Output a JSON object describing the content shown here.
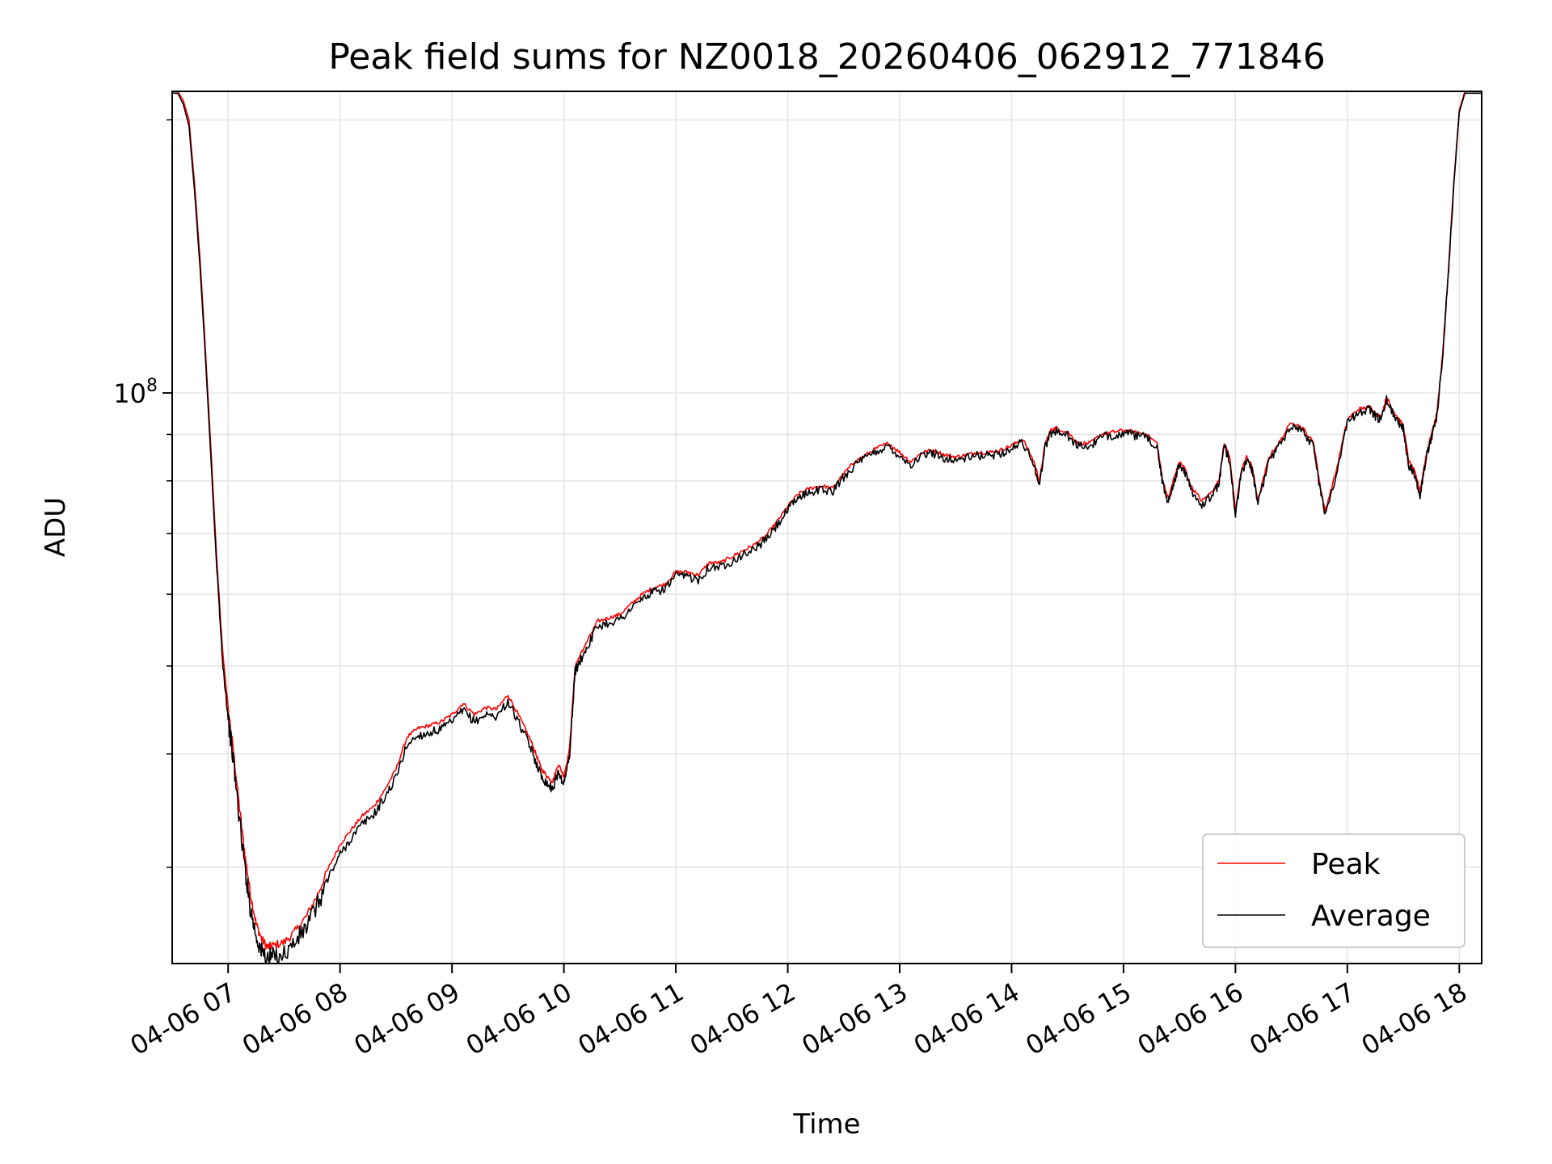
{
  "chart_data": {
    "type": "line",
    "title": "Peak field sums for NZ0018_20260406_062912_771846",
    "xlabel": "Time",
    "ylabel": "ADU",
    "x_unit": "hours since 04-06 00:00",
    "xlim": [
      6.5,
      18.2
    ],
    "ylim": [
      23500000,
      215000000
    ],
    "yscale": "log",
    "y_major_tick": {
      "value": 100000000,
      "label": "10",
      "exp": "8"
    },
    "y_minor_ticks": [
      30000000,
      40000000,
      50000000,
      60000000,
      70000000,
      80000000,
      90000000,
      200000000
    ],
    "x_ticks": [
      {
        "value": 7,
        "label": "04-06 07"
      },
      {
        "value": 8,
        "label": "04-06 08"
      },
      {
        "value": 9,
        "label": "04-06 09"
      },
      {
        "value": 10,
        "label": "04-06 10"
      },
      {
        "value": 11,
        "label": "04-06 11"
      },
      {
        "value": 12,
        "label": "04-06 12"
      },
      {
        "value": 13,
        "label": "04-06 13"
      },
      {
        "value": 14,
        "label": "04-06 14"
      },
      {
        "value": 15,
        "label": "04-06 15"
      },
      {
        "value": 16,
        "label": "04-06 16"
      },
      {
        "value": 17,
        "label": "04-06 17"
      },
      {
        "value": 18,
        "label": "04-06 18"
      }
    ],
    "grid": true,
    "legend_position": "lower-right",
    "colors": {
      "peak": "#ff0000",
      "average": "#000000",
      "grid": "#e5e5e5"
    },
    "series": [
      {
        "name": "Peak",
        "x": [
          6.5,
          6.55,
          6.6,
          6.65,
          6.7,
          6.75,
          6.8,
          6.85,
          6.9,
          6.95,
          7.0,
          7.05,
          7.1,
          7.15,
          7.2,
          7.25,
          7.3,
          7.35,
          7.4,
          7.5,
          7.6,
          7.7,
          7.8,
          7.9,
          8.0,
          8.1,
          8.2,
          8.3,
          8.4,
          8.5,
          8.6,
          8.7,
          8.8,
          8.9,
          9.0,
          9.1,
          9.2,
          9.3,
          9.4,
          9.5,
          9.6,
          9.7,
          9.75,
          9.8,
          9.85,
          9.9,
          9.95,
          10.0,
          10.05,
          10.1,
          10.15,
          10.2,
          10.3,
          10.4,
          10.5,
          10.6,
          10.7,
          10.8,
          10.9,
          11.0,
          11.1,
          11.2,
          11.3,
          11.4,
          11.5,
          11.6,
          11.7,
          11.8,
          11.9,
          12.0,
          12.1,
          12.2,
          12.3,
          12.4,
          12.5,
          12.6,
          12.7,
          12.8,
          12.9,
          13.0,
          13.1,
          13.2,
          13.3,
          13.4,
          13.5,
          13.6,
          13.7,
          13.8,
          13.9,
          14.0,
          14.1,
          14.2,
          14.25,
          14.3,
          14.35,
          14.4,
          14.5,
          14.6,
          14.7,
          14.8,
          14.9,
          15.0,
          15.1,
          15.2,
          15.3,
          15.35,
          15.4,
          15.45,
          15.5,
          15.55,
          15.6,
          15.7,
          15.8,
          15.85,
          15.9,
          15.95,
          16.0,
          16.05,
          16.1,
          16.15,
          16.2,
          16.3,
          16.4,
          16.5,
          16.6,
          16.7,
          16.75,
          16.8,
          16.9,
          17.0,
          17.1,
          17.2,
          17.25,
          17.3,
          17.35,
          17.4,
          17.45,
          17.5,
          17.55,
          17.6,
          17.65,
          17.7,
          17.75,
          17.8,
          17.85,
          17.9,
          17.95,
          18.0,
          18.05,
          18.1,
          18.2
        ],
        "y": [
          215000000,
          215000000,
          210000000,
          200000000,
          170000000,
          140000000,
          110000000,
          85000000,
          65000000,
          52000000,
          45000000,
          40000000,
          35000000,
          31000000,
          28000000,
          26000000,
          25000000,
          24500000,
          24600000,
          24800000,
          25500000,
          26500000,
          28000000,
          30000000,
          31800000,
          33000000,
          34200000,
          35000000,
          36500000,
          38500000,
          41800000,
          42700000,
          43000000,
          43400000,
          44200000,
          45500000,
          44200000,
          45000000,
          44800000,
          46500000,
          44000000,
          41500000,
          40000000,
          38500000,
          37800000,
          37300000,
          39000000,
          37800000,
          40500000,
          50000000,
          51500000,
          53000000,
          56000000,
          56500000,
          57000000,
          58500000,
          60000000,
          61000000,
          61500000,
          63500000,
          63500000,
          63000000,
          65000000,
          65000000,
          66000000,
          67000000,
          68000000,
          69500000,
          72000000,
          75000000,
          77500000,
          78500000,
          79000000,
          78500000,
          81500000,
          84000000,
          85500000,
          87000000,
          88000000,
          86000000,
          84000000,
          86000000,
          86500000,
          85500000,
          85000000,
          85500000,
          86000000,
          86000000,
          86500000,
          87500000,
          89000000,
          84000000,
          80000000,
          88000000,
          91000000,
          91500000,
          90500000,
          88000000,
          88000000,
          90000000,
          90500000,
          91000000,
          90500000,
          90000000,
          88000000,
          80000000,
          76500000,
          80500000,
          84000000,
          82500000,
          79000000,
          76000000,
          78000000,
          80000000,
          88000000,
          85000000,
          74000000,
          82000000,
          85000000,
          83000000,
          76000000,
          85000000,
          88500000,
          93000000,
          91500000,
          88000000,
          80000000,
          74000000,
          82000000,
          93500000,
          96000000,
          96500000,
          95000000,
          94000000,
          99000000,
          96000000,
          94000000,
          92000000,
          84000000,
          82000000,
          78000000,
          85000000,
          90000000,
          95000000,
          110000000,
          135000000,
          170000000,
          205000000,
          215000000,
          215000000,
          215000000
        ]
      },
      {
        "name": "Average",
        "x": [
          6.5,
          6.55,
          6.6,
          6.65,
          6.7,
          6.75,
          6.8,
          6.85,
          6.9,
          6.95,
          7.0,
          7.05,
          7.1,
          7.15,
          7.2,
          7.25,
          7.3,
          7.35,
          7.4,
          7.5,
          7.6,
          7.7,
          7.8,
          7.9,
          8.0,
          8.1,
          8.2,
          8.3,
          8.4,
          8.5,
          8.6,
          8.7,
          8.8,
          8.9,
          9.0,
          9.1,
          9.2,
          9.3,
          9.4,
          9.5,
          9.6,
          9.7,
          9.75,
          9.8,
          9.85,
          9.9,
          9.95,
          10.0,
          10.05,
          10.1,
          10.15,
          10.2,
          10.3,
          10.4,
          10.5,
          10.6,
          10.7,
          10.8,
          10.9,
          11.0,
          11.1,
          11.2,
          11.3,
          11.4,
          11.5,
          11.6,
          11.7,
          11.8,
          11.9,
          12.0,
          12.1,
          12.2,
          12.3,
          12.4,
          12.5,
          12.6,
          12.7,
          12.8,
          12.9,
          13.0,
          13.1,
          13.2,
          13.3,
          13.4,
          13.5,
          13.6,
          13.7,
          13.8,
          13.9,
          14.0,
          14.1,
          14.2,
          14.25,
          14.3,
          14.35,
          14.4,
          14.5,
          14.6,
          14.7,
          14.8,
          14.9,
          15.0,
          15.1,
          15.2,
          15.3,
          15.35,
          15.4,
          15.45,
          15.5,
          15.55,
          15.6,
          15.7,
          15.8,
          15.85,
          15.9,
          15.95,
          16.0,
          16.05,
          16.1,
          16.15,
          16.2,
          16.3,
          16.4,
          16.5,
          16.6,
          16.7,
          16.75,
          16.8,
          16.9,
          17.0,
          17.1,
          17.2,
          17.25,
          17.3,
          17.35,
          17.4,
          17.45,
          17.5,
          17.55,
          17.6,
          17.65,
          17.7,
          17.75,
          17.8,
          17.85,
          17.9,
          17.95,
          18.0,
          18.05,
          18.1,
          18.2
        ],
        "y": [
          214000000,
          214000000,
          208000000,
          197000000,
          167000000,
          137000000,
          108000000,
          83000000,
          63500000,
          50800000,
          43800000,
          39000000,
          34000000,
          30000000,
          27000000,
          25200000,
          24200000,
          23800000,
          23900000,
          24100000,
          24800000,
          25800000,
          27300000,
          29300000,
          31000000,
          32300000,
          33500000,
          34300000,
          35800000,
          37700000,
          41000000,
          41900000,
          42200000,
          42600000,
          43400000,
          44700000,
          43400000,
          44200000,
          44000000,
          45700000,
          43200000,
          40700000,
          39200000,
          37800000,
          37100000,
          36600000,
          38200000,
          37100000,
          39800000,
          49300000,
          50800000,
          52300000,
          55300000,
          55800000,
          56300000,
          57800000,
          59300000,
          60300000,
          60800000,
          62800000,
          62800000,
          62300000,
          64300000,
          64300000,
          65300000,
          66300000,
          67300000,
          68800000,
          71300000,
          74300000,
          76800000,
          77800000,
          78300000,
          77800000,
          80800000,
          83300000,
          84800000,
          86300000,
          87300000,
          85300000,
          83300000,
          85300000,
          85800000,
          84800000,
          84300000,
          84800000,
          85300000,
          85300000,
          85800000,
          86800000,
          88300000,
          83300000,
          79300000,
          87300000,
          90300000,
          90800000,
          89800000,
          87300000,
          87300000,
          89300000,
          89800000,
          90300000,
          89800000,
          89300000,
          87300000,
          79300000,
          75800000,
          79800000,
          83300000,
          81800000,
          78300000,
          75300000,
          77300000,
          79300000,
          87300000,
          84300000,
          73300000,
          81300000,
          84300000,
          82300000,
          75300000,
          84300000,
          87800000,
          92300000,
          90800000,
          87300000,
          79300000,
          73300000,
          81300000,
          92800000,
          95300000,
          95800000,
          94300000,
          93300000,
          98300000,
          95300000,
          93300000,
          91300000,
          83300000,
          81300000,
          77300000,
          84300000,
          89300000,
          94300000,
          109000000,
          134000000,
          169000000,
          204000000,
          214000000,
          214000000,
          214000000
        ]
      }
    ]
  }
}
